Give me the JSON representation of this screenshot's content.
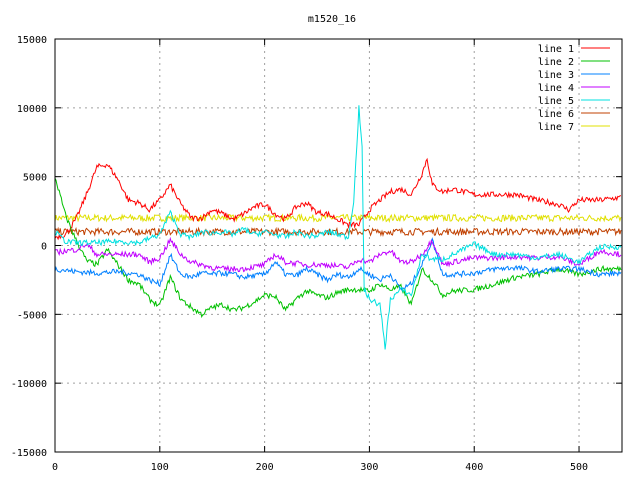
{
  "chart_data": {
    "type": "line",
    "title": "m1520_16",
    "xlabel": "",
    "ylabel": "",
    "xlim": [
      0,
      541
    ],
    "ylim": [
      -15000,
      15000
    ],
    "xticks": [
      0,
      100,
      200,
      300,
      400,
      500
    ],
    "yticks": [
      -15000,
      -10000,
      -5000,
      0,
      5000,
      10000,
      15000
    ],
    "grid": true,
    "legend_position": "top-right",
    "series": [
      {
        "name": "line 1",
        "color": "#ff0000",
        "x": [
          0,
          10,
          20,
          30,
          40,
          50,
          60,
          70,
          80,
          90,
          100,
          110,
          120,
          130,
          140,
          150,
          160,
          170,
          180,
          190,
          200,
          210,
          220,
          230,
          240,
          250,
          260,
          270,
          280,
          290,
          300,
          310,
          320,
          330,
          340,
          350,
          355,
          360,
          370,
          380,
          400,
          420,
          440,
          460,
          480,
          490,
          500,
          520,
          540
        ],
        "y": [
          600,
          800,
          1900,
          3700,
          5700,
          5900,
          4800,
          3300,
          3100,
          2600,
          3300,
          4400,
          3000,
          2000,
          2000,
          2600,
          2300,
          1900,
          2300,
          2800,
          3000,
          2300,
          1900,
          2800,
          3100,
          2400,
          2300,
          1900,
          1500,
          1500,
          2600,
          3300,
          3900,
          4100,
          3700,
          5200,
          6300,
          4400,
          3900,
          4100,
          3700,
          3700,
          3700,
          3300,
          3000,
          2600,
          3300,
          3300,
          3500
        ]
      },
      {
        "name": "line 2",
        "color": "#00c000",
        "x": [
          0,
          10,
          20,
          30,
          40,
          50,
          60,
          70,
          80,
          90,
          100,
          110,
          120,
          130,
          140,
          150,
          160,
          170,
          180,
          190,
          200,
          210,
          220,
          230,
          240,
          250,
          260,
          270,
          280,
          290,
          300,
          310,
          320,
          330,
          340,
          350,
          360,
          370,
          380,
          400,
          420,
          440,
          460,
          480,
          500,
          520,
          540
        ],
        "y": [
          5000,
          2200,
          400,
          -1100,
          -1400,
          -300,
          -1400,
          -2500,
          -2800,
          -3900,
          -4400,
          -2300,
          -3900,
          -4500,
          -5000,
          -4500,
          -4300,
          -4700,
          -4500,
          -4100,
          -3600,
          -3700,
          -4700,
          -3900,
          -3300,
          -3600,
          -3800,
          -3400,
          -3200,
          -3200,
          -3300,
          -2800,
          -3200,
          -3000,
          -4300,
          -1700,
          -2500,
          -3600,
          -3300,
          -3200,
          -2800,
          -2300,
          -2100,
          -1700,
          -2100,
          -1700,
          -1700
        ]
      },
      {
        "name": "line 3",
        "color": "#0080ff",
        "x": [
          0,
          20,
          40,
          60,
          80,
          90,
          100,
          110,
          120,
          130,
          140,
          150,
          160,
          170,
          180,
          200,
          210,
          220,
          230,
          240,
          250,
          260,
          270,
          280,
          290,
          300,
          310,
          320,
          330,
          340,
          350,
          360,
          370,
          380,
          400,
          420,
          440,
          460,
          480,
          500,
          520,
          540
        ],
        "y": [
          -1700,
          -1900,
          -2000,
          -1900,
          -2100,
          -2500,
          -2800,
          -700,
          -2100,
          -2300,
          -2000,
          -2100,
          -2000,
          -2100,
          -2300,
          -2100,
          -1200,
          -2100,
          -2200,
          -1700,
          -2100,
          -2500,
          -2100,
          -2300,
          -1700,
          -2100,
          -2500,
          -2100,
          -3200,
          -2800,
          -1400,
          400,
          -2100,
          -2100,
          -2000,
          -1700,
          -1600,
          -1900,
          -1700,
          -1700,
          -2100,
          -2000
        ]
      },
      {
        "name": "line 4",
        "color": "#c000ff",
        "x": [
          0,
          10,
          20,
          30,
          40,
          60,
          80,
          90,
          100,
          110,
          120,
          130,
          140,
          150,
          160,
          170,
          180,
          200,
          210,
          220,
          240,
          260,
          280,
          290,
          300,
          310,
          320,
          330,
          340,
          350,
          360,
          370,
          380,
          400,
          420,
          440,
          460,
          480,
          500,
          520,
          540
        ],
        "y": [
          -500,
          -400,
          -300,
          100,
          -650,
          -650,
          -650,
          -1200,
          -900,
          400,
          -650,
          -1200,
          -1400,
          -1600,
          -1700,
          -1700,
          -1700,
          -1400,
          -650,
          -1200,
          -1400,
          -1400,
          -1600,
          -1000,
          -1200,
          -650,
          -400,
          -1200,
          -1200,
          -650,
          400,
          -1400,
          -1200,
          -900,
          -900,
          -800,
          -900,
          -800,
          -1400,
          -400,
          -650
        ]
      },
      {
        "name": "line 5",
        "color": "#00e0e0",
        "x": [
          0,
          10,
          20,
          40,
          60,
          80,
          100,
          110,
          120,
          130,
          140,
          150,
          160,
          170,
          180,
          190,
          200,
          210,
          220,
          230,
          240,
          250,
          260,
          270,
          280,
          285,
          290,
          293,
          295,
          300,
          310,
          315,
          320,
          330,
          340,
          350,
          360,
          370,
          380,
          400,
          420,
          440,
          460,
          480,
          500,
          520,
          540
        ],
        "y": [
          1000,
          300,
          200,
          200,
          300,
          200,
          800,
          2400,
          800,
          600,
          1000,
          900,
          1000,
          800,
          1200,
          800,
          1000,
          800,
          600,
          1000,
          700,
          700,
          1000,
          800,
          600,
          3300,
          10000,
          7000,
          -3200,
          -3900,
          -4300,
          -7400,
          -3900,
          -3200,
          -3600,
          -650,
          -1000,
          -1000,
          -650,
          100,
          -650,
          -650,
          -900,
          -650,
          -1200,
          -100,
          -100
        ]
      },
      {
        "name": "line 6",
        "color": "#c04000",
        "x": [
          0,
          100,
          200,
          300,
          400,
          500,
          540
        ],
        "y": [
          1000,
          1000,
          1000,
          1000,
          1000,
          1000,
          1000
        ]
      },
      {
        "name": "line 7",
        "color": "#e0e000",
        "x": [
          0,
          100,
          200,
          300,
          400,
          500,
          540
        ],
        "y": [
          2000,
          2000,
          2000,
          2000,
          2000,
          2000,
          2000
        ]
      }
    ]
  }
}
